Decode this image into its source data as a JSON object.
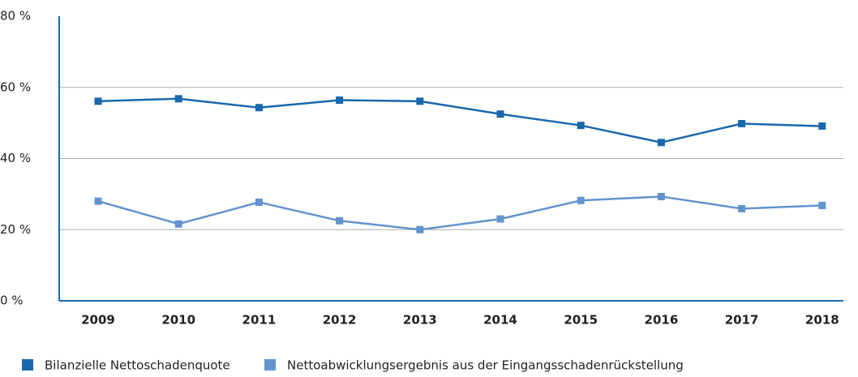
{
  "chart_data": {
    "type": "line",
    "categories": [
      "2009",
      "2010",
      "2011",
      "2012",
      "2013",
      "2014",
      "2015",
      "2016",
      "2017",
      "2018"
    ],
    "series": [
      {
        "name": "Bilanzielle Nettoschadenquote",
        "color": "#1a67ad",
        "values": [
          56.1,
          56.8,
          54.3,
          56.4,
          56.1,
          52.5,
          49.3,
          44.5,
          49.8,
          49.1
        ]
      },
      {
        "name": "Nettoabwicklungsergebnis aus der Eingangsschadenrückstellung",
        "color": "#6293cf",
        "values": [
          28.0,
          21.6,
          27.7,
          22.5,
          20.0,
          23.0,
          28.2,
          29.3,
          25.9,
          26.8
        ]
      }
    ],
    "ylim": [
      0,
      80
    ],
    "yticks": [
      {
        "value": 0,
        "label": "0 %"
      },
      {
        "value": 20,
        "label": "20 %"
      },
      {
        "value": 40,
        "label": "40 %"
      },
      {
        "value": 60,
        "label": "60 %"
      },
      {
        "value": 80,
        "label": "80 %"
      }
    ],
    "grid": true
  }
}
